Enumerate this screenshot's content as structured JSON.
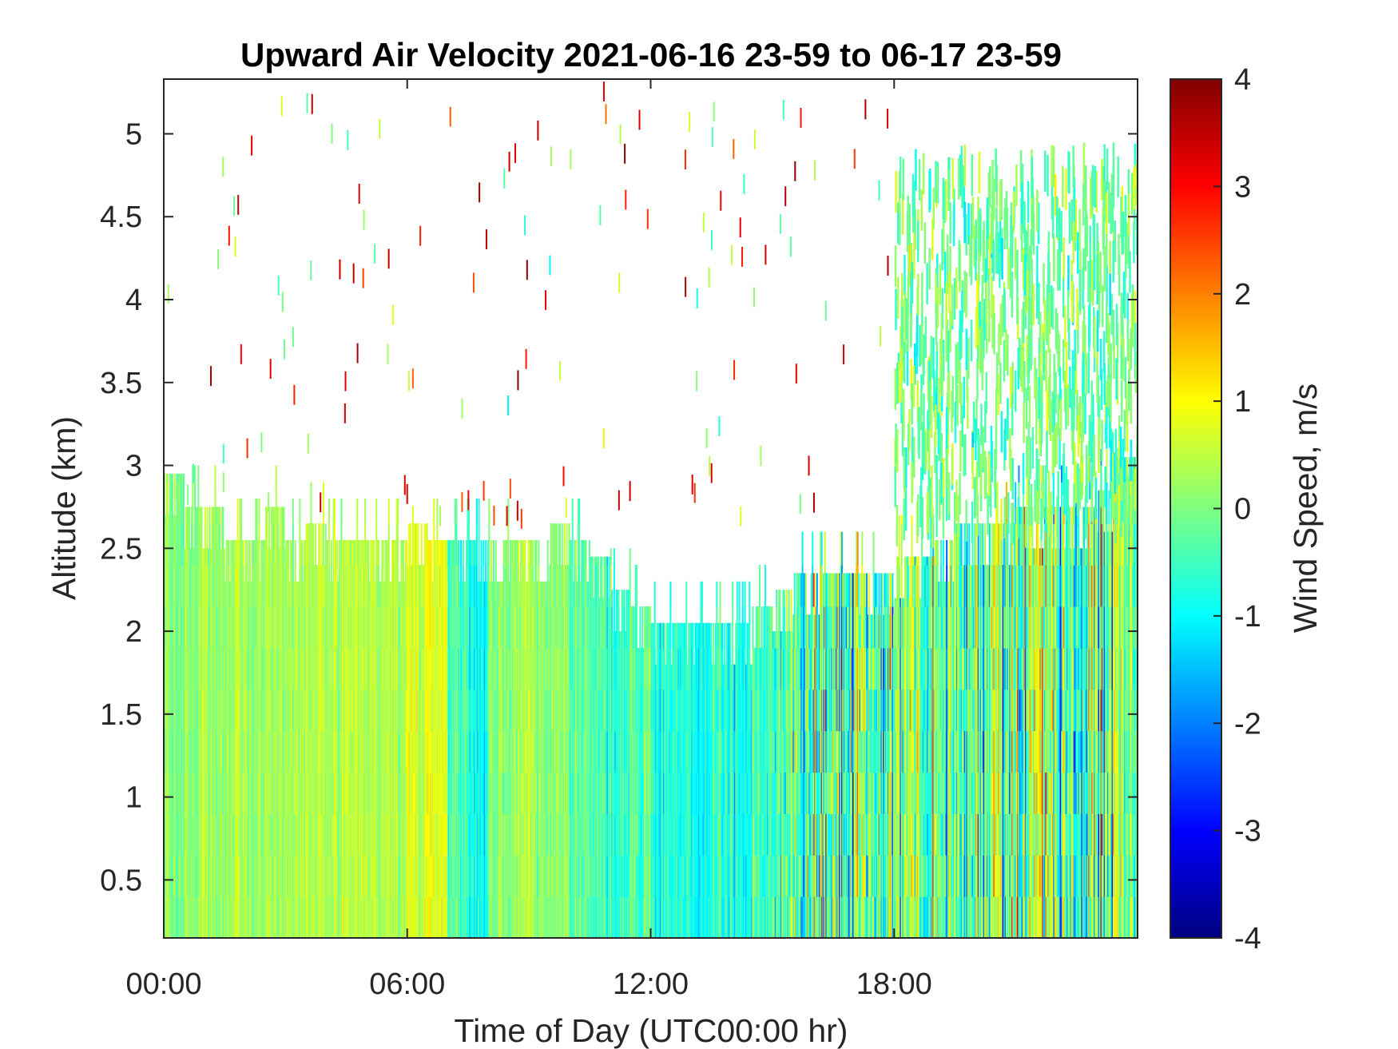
{
  "chart_data": {
    "type": "heatmap",
    "title": "Upward Air Velocity 2021-06-16 23-59 to 06-17 23-59",
    "xlabel": "Time of Day (UTC00:00 hr)",
    "ylabel": "Altitude (km)",
    "colorbar_label": "Wind Speed, m/s",
    "xlim": [
      0,
      24
    ],
    "ylim": [
      0.15,
      5.33
    ],
    "clim": [
      -4,
      4
    ],
    "colormap": "jet",
    "x_ticks": [
      {
        "value": 0,
        "label": "00:00"
      },
      {
        "value": 6,
        "label": "06:00"
      },
      {
        "value": 12,
        "label": "12:00"
      },
      {
        "value": 18,
        "label": "18:00"
      }
    ],
    "y_ticks": [
      {
        "value": 0.5,
        "label": "0.5"
      },
      {
        "value": 1,
        "label": "1"
      },
      {
        "value": 1.5,
        "label": "1.5"
      },
      {
        "value": 2,
        "label": "2"
      },
      {
        "value": 2.5,
        "label": "2.5"
      },
      {
        "value": 3,
        "label": "3"
      },
      {
        "value": 3.5,
        "label": "3.5"
      },
      {
        "value": 4,
        "label": "4"
      },
      {
        "value": 4.5,
        "label": "4.5"
      },
      {
        "value": 5,
        "label": "5"
      }
    ],
    "colorbar_ticks": [
      {
        "value": -4,
        "label": "-4"
      },
      {
        "value": -3,
        "label": "-3"
      },
      {
        "value": -2,
        "label": "-2"
      },
      {
        "value": -1,
        "label": "-1"
      },
      {
        "value": 0,
        "label": "0"
      },
      {
        "value": 1,
        "label": "1"
      },
      {
        "value": 2,
        "label": "2"
      },
      {
        "value": 3,
        "label": "3"
      },
      {
        "value": 4,
        "label": "4"
      }
    ],
    "column_width_hours": 0.5,
    "cell_height_km": 0.25,
    "time_bins_start_hours": [
      0,
      0.5,
      1,
      1.5,
      2,
      2.5,
      3,
      3.5,
      4,
      4.5,
      5,
      5.5,
      6,
      6.5,
      7,
      7.5,
      8,
      8.5,
      9,
      9.5,
      10,
      10.5,
      11,
      11.5,
      12,
      12.5,
      13,
      13.5,
      14,
      14.5,
      15,
      15.5,
      16,
      16.5,
      17,
      17.5,
      18,
      18.5,
      19,
      19.5,
      20,
      20.5,
      21,
      21.5,
      22,
      22.5,
      23,
      23.5
    ],
    "data_top_altitude_km": [
      2.95,
      2.75,
      2.75,
      2.55,
      2.55,
      2.75,
      2.55,
      2.65,
      2.55,
      2.55,
      2.55,
      2.55,
      2.65,
      2.55,
      2.55,
      2.55,
      2.55,
      2.55,
      2.55,
      2.65,
      2.55,
      2.45,
      2.25,
      2.15,
      2.05,
      2.05,
      2.05,
      2.05,
      2.05,
      2.15,
      2.25,
      2.35,
      2.35,
      2.35,
      2.35,
      2.35,
      2.45,
      2.45,
      2.55,
      2.65,
      2.65,
      2.65,
      2.75,
      2.75,
      2.75,
      2.75,
      2.85,
      3.05
    ],
    "mean_velocity_m_s": [
      0.1,
      0.3,
      0.3,
      0.4,
      0.3,
      0.3,
      0.3,
      0.4,
      0.4,
      0.5,
      0.4,
      0.4,
      0.6,
      0.8,
      -0.4,
      -0.9,
      0.1,
      0.2,
      0.1,
      0.2,
      -0.3,
      -0.5,
      -0.6,
      -0.4,
      -0.7,
      -0.7,
      -0.8,
      -0.6,
      -0.8,
      -0.4,
      -0.3,
      -0.4,
      -0.3,
      -0.6,
      -0.3,
      -0.5,
      -0.4,
      -0.3,
      -0.3,
      -0.5,
      -0.2,
      -0.4,
      -0.2,
      0.2,
      -0.3,
      -0.4,
      -0.3,
      -0.1
    ],
    "velocity_spread_m_s": [
      0.4,
      0.4,
      0.4,
      0.4,
      0.4,
      0.4,
      0.4,
      0.4,
      0.4,
      0.4,
      0.4,
      0.4,
      0.5,
      0.5,
      0.6,
      0.6,
      0.5,
      0.5,
      0.5,
      0.5,
      0.6,
      0.6,
      0.6,
      0.6,
      0.5,
      0.5,
      0.5,
      0.6,
      0.6,
      0.8,
      1.2,
      1.6,
      1.8,
      1.8,
      1.8,
      1.8,
      1.6,
      1.6,
      1.6,
      1.6,
      1.6,
      1.6,
      1.8,
      1.9,
      1.6,
      1.6,
      1.8,
      1.2
    ],
    "upper_sparse_echo_window_hours": [
      18,
      24
    ],
    "upper_sparse_echo_top_km": 4.7,
    "upper_sparse_echo_mean_m_s": -0.1
  },
  "colors": {
    "axes": "#262626",
    "missing_data": "#ffffff"
  }
}
